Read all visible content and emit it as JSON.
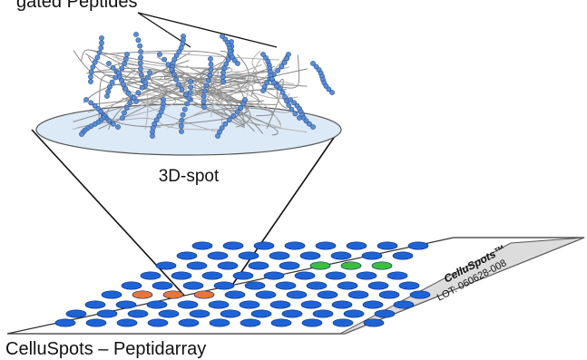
{
  "labels": {
    "top_label": "gated Peptides",
    "spot_label": "3D-spot",
    "caption": "CelluSpots – Peptidarray"
  },
  "slide": {
    "brand": "CelluSpots™",
    "lot": "LOT: 060628-008"
  },
  "colors": {
    "spot_blue": "#1e63d6",
    "spot_green": "#3cbf3c",
    "spot_orange": "#e8763a",
    "slide_gray": "#dcdcdc",
    "disc_fill": "#dce9f7",
    "bead_blue": "#5b8fd6",
    "fiber_gray": "#8a8a8a"
  }
}
